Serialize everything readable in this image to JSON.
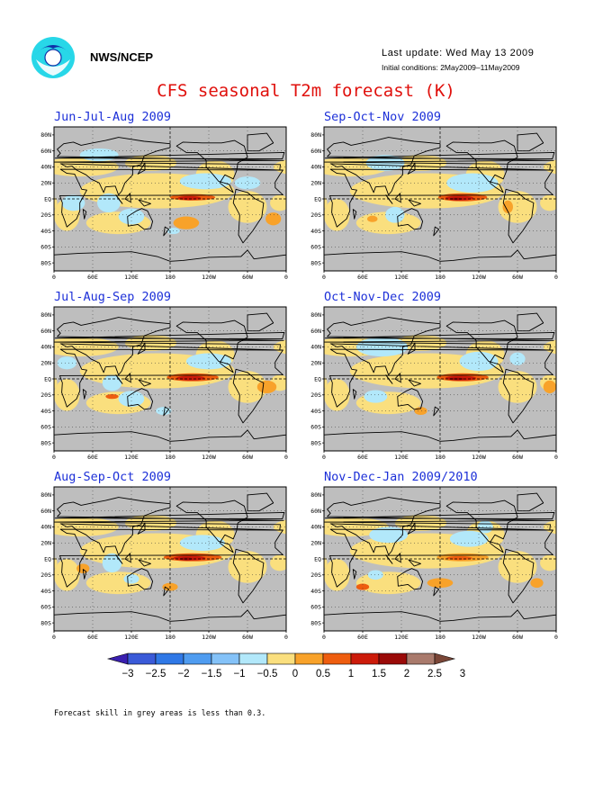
{
  "header": {
    "org": "NWS/NCEP",
    "last_update": "Last update: Wed May 13 2009",
    "initial_conditions": "Initial conditions: 2May2009–11May2009",
    "logo_icon": "noaa-logo-icon"
  },
  "title": "CFS seasonal T2m forecast (K)",
  "axes": {
    "lat_labels": [
      "80N",
      "60N",
      "40N",
      "20N",
      "EQ",
      "20S",
      "40S",
      "60S",
      "80S"
    ],
    "lon_labels": [
      "0",
      "60E",
      "120E",
      "180",
      "120W",
      "60W",
      "0"
    ]
  },
  "panels": [
    {
      "id": "jja",
      "title": "Jun-Jul-Aug 2009"
    },
    {
      "id": "son",
      "title": "Sep-Oct-Nov 2009"
    },
    {
      "id": "jas",
      "title": "Jul-Aug-Sep 2009"
    },
    {
      "id": "ond",
      "title": "Oct-Nov-Dec 2009"
    },
    {
      "id": "aso",
      "title": "Aug-Sep-Oct 2009"
    },
    {
      "id": "ndj",
      "title": "Nov-Dec-Jan 2009/2010"
    }
  ],
  "colors": {
    "grey_area": "#bebebe",
    "scale": [
      "#3a1fb0",
      "#3a5ad8",
      "#2f78e6",
      "#4f9cf0",
      "#84c2f8",
      "#b2e8fa",
      "#fadf7e",
      "#f8a22a",
      "#ee5d0f",
      "#cc1b0a",
      "#9a0a08",
      "#a97a6c",
      "#7a4637"
    ]
  },
  "legend": {
    "labels": [
      "−3",
      "−2.5",
      "−2",
      "−1.5",
      "−1",
      "−0.5",
      "0",
      "0.5",
      "1",
      "1.5",
      "2",
      "2.5",
      "3"
    ]
  },
  "footnote": "Forecast skill in grey areas is less than 0.3."
}
